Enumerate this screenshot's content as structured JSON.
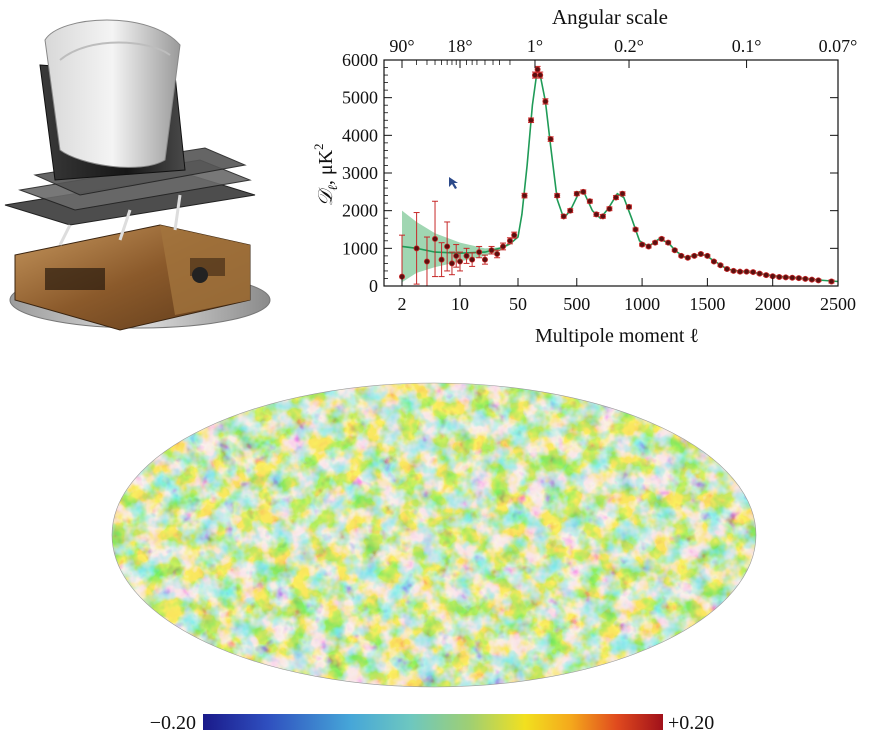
{
  "chart_data": [
    {
      "type": "scatter",
      "title": "",
      "top_axis": {
        "label": "Angular scale",
        "ticks": [
          {
            "label": "90°",
            "ell": 2
          },
          {
            "label": "18°",
            "ell": 10
          },
          {
            "label": "1°",
            "ell": 180
          },
          {
            "label": "0.2°",
            "ell": 900
          },
          {
            "label": "0.1°",
            "ell": 1800
          },
          {
            "label": "0.07°",
            "ell": 2500
          }
        ]
      },
      "xlabel": "Multipole moment ℓ",
      "ylabel_main": "𝒟",
      "ylabel_sub": "ℓ",
      "ylabel_rest": ", μK",
      "ylabel_sup": "2",
      "xscale": "log below ℓ=50, linear above",
      "xlim": [
        2,
        2500
      ],
      "ylim": [
        0,
        6000
      ],
      "x_ticks": [
        2,
        10,
        50,
        500,
        1000,
        1500,
        2000,
        2500
      ],
      "x_tick_labels": [
        "2",
        "10",
        "50",
        "500",
        "1000",
        "1500",
        "2000",
        "2500"
      ],
      "y_ticks": [
        0,
        1000,
        2000,
        3000,
        4000,
        5000,
        6000
      ],
      "y_tick_labels": [
        "0",
        "1000",
        "2000",
        "3000",
        "4000",
        "5000",
        "6000"
      ],
      "colors": {
        "points": "#c62828",
        "point_face": "#5a1010",
        "model": "#1f9b57",
        "band": "#8fcfa4"
      },
      "series": [
        {
          "name": "",
          "points": [
            [
              2,
              250,
              1100
            ],
            [
              3,
              1000,
              950
            ],
            [
              4,
              650,
              650
            ],
            [
              5,
              1250,
              1000
            ],
            [
              6,
              700,
              450
            ],
            [
              7,
              1050,
              650
            ],
            [
              8,
              600,
              300
            ],
            [
              9,
              800,
              300
            ],
            [
              10,
              650,
              250
            ],
            [
              12,
              800,
              200
            ],
            [
              14,
              700,
              180
            ],
            [
              17,
              900,
              150
            ],
            [
              20,
              700,
              120
            ],
            [
              24,
              950,
              100
            ],
            [
              28,
              850,
              100
            ],
            [
              33,
              1050,
              90
            ],
            [
              40,
              1200,
              80
            ],
            [
              45,
              1350,
              80
            ],
            [
              100,
              2400,
              60
            ],
            [
              150,
              4400,
              60
            ],
            [
              180,
              5600,
              80
            ],
            [
              200,
              5750,
              80
            ],
            [
              220,
              5600,
              80
            ],
            [
              260,
              4900,
              70
            ],
            [
              300,
              3900,
              60
            ],
            [
              350,
              2400,
              50
            ],
            [
              400,
              1850,
              50
            ],
            [
              450,
              2000,
              50
            ],
            [
              500,
              2450,
              50
            ],
            [
              550,
              2500,
              50
            ],
            [
              600,
              2250,
              50
            ],
            [
              650,
              1900,
              50
            ],
            [
              700,
              1850,
              50
            ],
            [
              750,
              2050,
              50
            ],
            [
              800,
              2350,
              50
            ],
            [
              850,
              2450,
              50
            ],
            [
              900,
              2100,
              50
            ],
            [
              950,
              1500,
              40
            ],
            [
              1000,
              1100,
              40
            ],
            [
              1050,
              1050,
              40
            ],
            [
              1100,
              1150,
              40
            ],
            [
              1150,
              1250,
              40
            ],
            [
              1200,
              1150,
              40
            ],
            [
              1250,
              950,
              30
            ],
            [
              1300,
              800,
              30
            ],
            [
              1350,
              750,
              30
            ],
            [
              1400,
              800,
              30
            ],
            [
              1450,
              850,
              30
            ],
            [
              1500,
              800,
              30
            ],
            [
              1550,
              650,
              30
            ],
            [
              1600,
              550,
              30
            ],
            [
              1650,
              450,
              30
            ],
            [
              1700,
              400,
              30
            ],
            [
              1750,
              380,
              30
            ],
            [
              1800,
              380,
              30
            ],
            [
              1850,
              370,
              30
            ],
            [
              1900,
              330,
              30
            ],
            [
              1950,
              290,
              30
            ],
            [
              2000,
              260,
              30
            ],
            [
              2050,
              240,
              30
            ],
            [
              2100,
              230,
              30
            ],
            [
              2150,
              220,
              30
            ],
            [
              2200,
              210,
              30
            ],
            [
              2250,
              190,
              30
            ],
            [
              2300,
              170,
              30
            ],
            [
              2350,
              150,
              30
            ],
            [
              2450,
              120,
              40
            ]
          ]
        }
      ],
      "model_curve": [
        [
          2,
          1050
        ],
        [
          3,
          1000
        ],
        [
          5,
          900
        ],
        [
          10,
          870
        ],
        [
          20,
          900
        ],
        [
          30,
          1000
        ],
        [
          40,
          1120
        ],
        [
          50,
          1300
        ],
        [
          80,
          1900
        ],
        [
          120,
          3200
        ],
        [
          160,
          4800
        ],
        [
          190,
          5550
        ],
        [
          220,
          5600
        ],
        [
          260,
          4900
        ],
        [
          300,
          3700
        ],
        [
          350,
          2300
        ],
        [
          400,
          1800
        ],
        [
          450,
          2000
        ],
        [
          520,
          2500
        ],
        [
          560,
          2450
        ],
        [
          620,
          2000
        ],
        [
          680,
          1800
        ],
        [
          740,
          2050
        ],
        [
          810,
          2450
        ],
        [
          860,
          2350
        ],
        [
          920,
          1800
        ],
        [
          980,
          1200
        ],
        [
          1050,
          1050
        ],
        [
          1130,
          1250
        ],
        [
          1200,
          1150
        ],
        [
          1260,
          920
        ],
        [
          1330,
          760
        ],
        [
          1420,
          820
        ],
        [
          1480,
          820
        ],
        [
          1560,
          650
        ],
        [
          1650,
          450
        ],
        [
          1750,
          390
        ],
        [
          1850,
          360
        ],
        [
          1950,
          300
        ],
        [
          2050,
          250
        ],
        [
          2200,
          210
        ],
        [
          2350,
          160
        ],
        [
          2500,
          120
        ]
      ],
      "cosmic_variance_band": [
        [
          2,
          2000,
          100
        ],
        [
          3,
          1700,
          350
        ],
        [
          5,
          1400,
          500
        ],
        [
          10,
          1150,
          650
        ],
        [
          20,
          1000,
          800
        ],
        [
          30,
          1030,
          930
        ],
        [
          40,
          1140,
          1090
        ],
        [
          50,
          1320,
          1280
        ]
      ]
    },
    {
      "type": "heatmap",
      "title": "",
      "projection": "Mollweide",
      "colorbar": {
        "min_label": "−0.20",
        "max_label": "+0.20",
        "vmin": -0.2,
        "vmax": 0.2
      },
      "colors": [
        "#1a1a8a",
        "#2f4fbf",
        "#46a6d8",
        "#6dc7c0",
        "#9fcf73",
        "#f2e01f",
        "#f4a81c",
        "#e04a1e",
        "#a0101a"
      ]
    }
  ],
  "image": {
    "alt_icon": "planck-satellite-icon"
  }
}
